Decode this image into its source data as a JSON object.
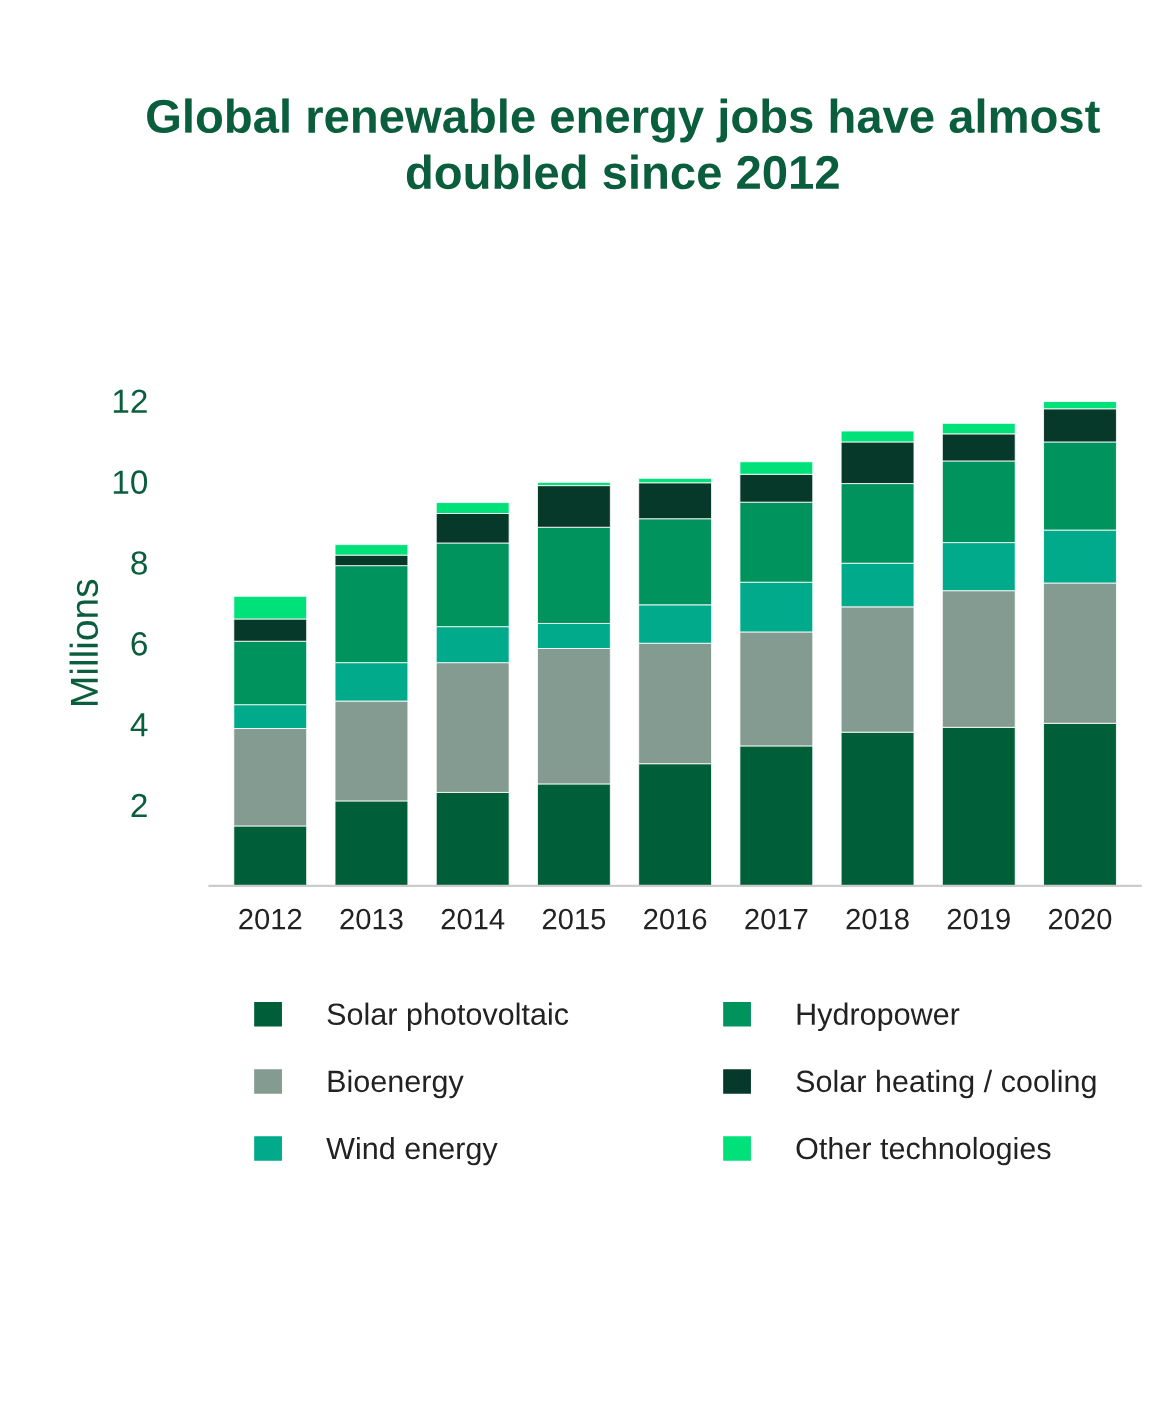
{
  "chart_data": {
    "type": "bar",
    "stacked": true,
    "title": "Global renewable energy jobs have almost\ndoubled since 2012",
    "ylabel": "Millions",
    "categories": [
      "2012",
      "2013",
      "2014",
      "2015",
      "2016",
      "2017",
      "2018",
      "2019",
      "2020"
    ],
    "series": [
      {
        "name": "Solar photovoltaic",
        "color": "#005e38",
        "values": [
          1.48,
          2.1,
          2.31,
          2.52,
          3.02,
          3.46,
          3.8,
          3.92,
          4.02
        ]
      },
      {
        "name": "Bioenergy",
        "color": "#839b91",
        "values": [
          2.41,
          2.47,
          3.21,
          3.35,
          2.98,
          2.82,
          3.1,
          3.38,
          3.47
        ]
      },
      {
        "name": "Wind energy",
        "color": "#00aa8b",
        "values": [
          0.59,
          0.95,
          0.89,
          0.62,
          0.95,
          1.23,
          1.08,
          1.19,
          1.31
        ]
      },
      {
        "name": "Hydropower",
        "color": "#00935e",
        "values": [
          1.57,
          2.4,
          2.07,
          2.38,
          2.13,
          1.98,
          1.97,
          2.02,
          2.18
        ]
      },
      {
        "name": "Solar heating / cooling",
        "color": "#07392b",
        "values": [
          0.55,
          0.26,
          0.73,
          1.03,
          0.89,
          0.69,
          1.03,
          0.67,
          0.82
        ]
      },
      {
        "name": "Other technologies",
        "color": "#00e17a",
        "values": [
          0.56,
          0.26,
          0.27,
          0.08,
          0.11,
          0.31,
          0.27,
          0.26,
          0.18
        ]
      }
    ],
    "ylim": [
      0,
      12
    ],
    "yticks": [
      2,
      4,
      6,
      8,
      10,
      12
    ],
    "grid": false,
    "legend": "bottom"
  }
}
